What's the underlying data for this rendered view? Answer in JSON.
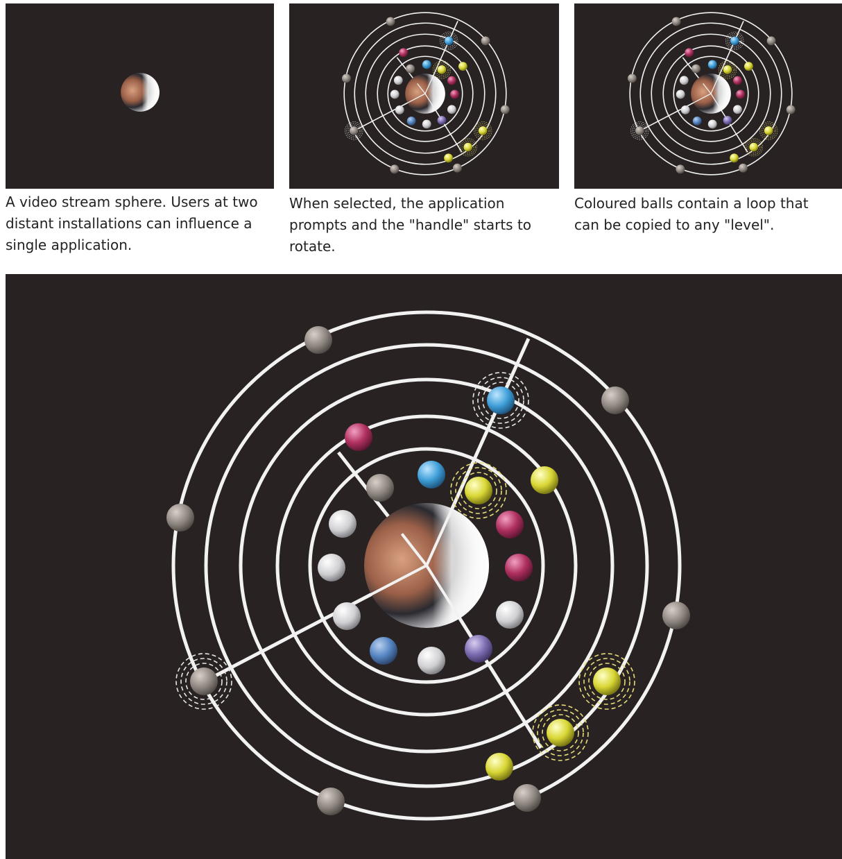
{
  "captions": [
    {
      "lines": [
        "A video stream sphere. Users at two",
        "distant installations can influence a",
        "single application."
      ]
    },
    {
      "lines": [
        "When selected, the application",
        "prompts and the \"handle\" starts to",
        "rotate."
      ]
    },
    {
      "lines": [
        "Coloured balls contain a loop that",
        "can be copied to any \"level\"."
      ]
    }
  ]
}
